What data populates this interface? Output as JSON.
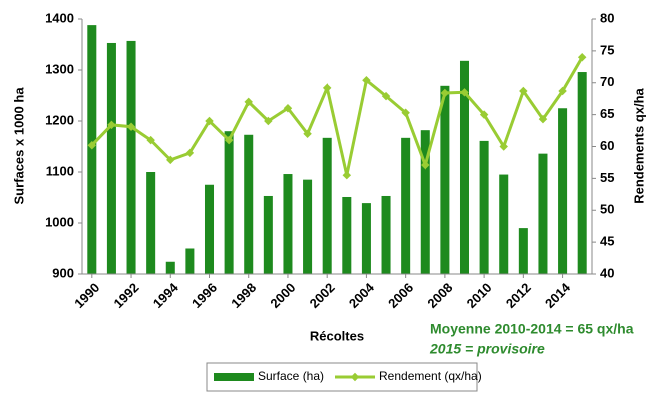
{
  "chart_data": {
    "type": "bar-line",
    "x": [
      1990,
      1991,
      1992,
      1993,
      1994,
      1995,
      1996,
      1997,
      1998,
      1999,
      2000,
      2001,
      2002,
      2003,
      2004,
      2005,
      2006,
      2007,
      2008,
      2009,
      2010,
      2011,
      2012,
      2013,
      2014,
      2015
    ],
    "xlim": [
      1989.5,
      2015.5
    ],
    "xticks": [
      1990,
      1992,
      1994,
      1996,
      1998,
      2000,
      2002,
      2004,
      2006,
      2008,
      2010,
      2012,
      2014
    ],
    "xlabel": "Récoltes",
    "ylabel": "Surfaces x 1000 ha",
    "y2label": "Rendements qx/ha",
    "ylim": [
      900,
      1400
    ],
    "yticks": [
      900,
      1000,
      1100,
      1200,
      1300,
      1400
    ],
    "y2lim": [
      40,
      80
    ],
    "y2ticks": [
      40,
      45,
      50,
      55,
      60,
      65,
      70,
      75,
      80
    ],
    "series": [
      {
        "name": "Surface (ha)",
        "type": "bar",
        "color": "#1e8a1e",
        "values": [
          1388,
          1353,
          1357,
          1100,
          924,
          950,
          1075,
          1180,
          1173,
          1053,
          1096,
          1085,
          1167,
          1051,
          1039,
          1053,
          1167,
          1182,
          1269,
          1318,
          1161,
          1095,
          990,
          1136,
          1225,
          1296
        ]
      },
      {
        "name": "Rendement (qx/ha)",
        "type": "line",
        "axis": "y2",
        "color": "#99cc33",
        "values": [
          60.2,
          63.4,
          63.1,
          61,
          57.9,
          59,
          64,
          61,
          67,
          64,
          66,
          62,
          69.2,
          55.5,
          70.4,
          67.9,
          65.3,
          57.1,
          68.4,
          68.5,
          65,
          60,
          68.7,
          64.3,
          68.7,
          74
        ]
      }
    ],
    "annotations": [
      "Moyenne 2010-2014 = 65 qx/ha",
      "2015 = provisoire"
    ],
    "legend": "bottom"
  }
}
